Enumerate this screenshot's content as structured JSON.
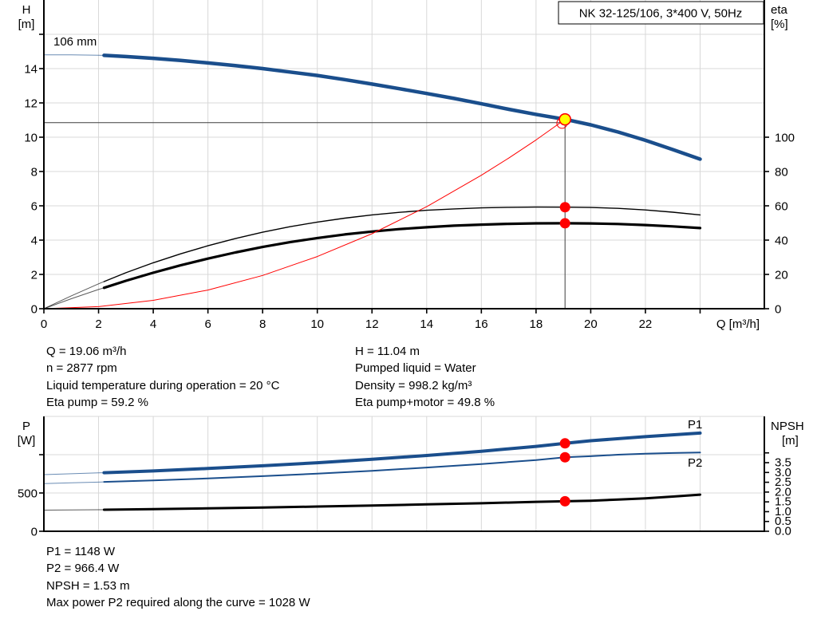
{
  "title_box": "NK 32-125/106, 3*400 V, 50Hz",
  "colors": {
    "blue": "#1a4e8c",
    "label_blue": "#2060a5",
    "black": "#000000",
    "red": "#ff0000",
    "yellow": "#ffff00",
    "grid": "#d8d8d8",
    "crosshair": "#3f3f3f"
  },
  "info": {
    "top_left": [
      "Q = 19.06 m³/h",
      "n = 2877 rpm",
      "Liquid temperature during operation = 20 °C",
      "Eta pump = 59.2 %"
    ],
    "top_right": [
      "H = 11.04 m",
      "Pumped liquid = Water",
      "Density = 998.2 kg/m³",
      "Eta pump+motor = 49.8 %"
    ],
    "bottom": [
      "P1 = 1148 W",
      "P2 = 966.4 W",
      "NPSH = 1.53 m",
      "Max power P2 required along the curve = 1028 W"
    ]
  },
  "chart_data": [
    {
      "type": "line",
      "title": "NK 32-125/106, 3*400 V, 50Hz",
      "impeller_label": "106 mm",
      "x_axis": {
        "label": "Q [m³/h]",
        "range": [
          0,
          26.35
        ],
        "ticks": [
          [
            0,
            "0"
          ],
          [
            2,
            "2"
          ],
          [
            4,
            "4"
          ],
          [
            6,
            "6"
          ],
          [
            8,
            "8"
          ],
          [
            10,
            "10"
          ],
          [
            12,
            "12"
          ],
          [
            14,
            "14"
          ],
          [
            16,
            "16"
          ],
          [
            18,
            "18"
          ],
          [
            20,
            "20"
          ],
          [
            22,
            "22"
          ],
          [
            24,
            ""
          ]
        ]
      },
      "y_left": {
        "label_line1": "H",
        "label_line2": "[m]",
        "range": [
          0,
          18
        ],
        "ticks": [
          [
            0,
            "0"
          ],
          [
            2,
            "2"
          ],
          [
            4,
            "4"
          ],
          [
            6,
            "6"
          ],
          [
            8,
            "8"
          ],
          [
            10,
            "10"
          ],
          [
            12,
            "12"
          ],
          [
            14,
            "14"
          ],
          [
            16,
            ""
          ]
        ]
      },
      "y_right": {
        "label_line1": "eta",
        "label_line2": "[%]",
        "range": [
          0,
          180
        ],
        "ticks": [
          [
            0,
            "0"
          ],
          [
            20,
            "20"
          ],
          [
            40,
            "40"
          ],
          [
            60,
            "60"
          ],
          [
            80,
            "80"
          ],
          [
            100,
            "100"
          ]
        ]
      },
      "grid": {
        "x": [
          2,
          4,
          6,
          8,
          10,
          12,
          14,
          16,
          18,
          20,
          22,
          24
        ],
        "y_left": [
          2,
          4,
          6,
          8,
          10,
          12,
          14,
          16
        ]
      },
      "duty_point": {
        "q": 19.06,
        "h": 11.04
      },
      "crosshair": {
        "q": 19.06,
        "h": 10.85
      },
      "series": [
        {
          "name": "head-curve",
          "color": "blue",
          "width": 4.5,
          "scale": "H",
          "thin_until": 2.2,
          "points": [
            [
              0,
              14.8
            ],
            [
              1,
              14.8
            ],
            [
              2,
              14.78
            ],
            [
              2.2,
              14.77
            ],
            [
              3,
              14.7
            ],
            [
              4,
              14.6
            ],
            [
              5,
              14.48
            ],
            [
              6,
              14.33
            ],
            [
              7,
              14.17
            ],
            [
              8,
              14.0
            ],
            [
              9,
              13.8
            ],
            [
              10,
              13.6
            ],
            [
              11,
              13.36
            ],
            [
              12,
              13.1
            ],
            [
              13,
              12.83
            ],
            [
              14,
              12.55
            ],
            [
              15,
              12.26
            ],
            [
              16,
              11.95
            ],
            [
              17,
              11.63
            ],
            [
              18,
              11.33
            ],
            [
              19.06,
              11.04
            ],
            [
              20,
              10.72
            ],
            [
              21,
              10.3
            ],
            [
              22,
              9.82
            ],
            [
              23,
              9.28
            ],
            [
              24,
              8.72
            ]
          ]
        },
        {
          "name": "eta-pump-curve",
          "color": "black",
          "width": 1.4,
          "scale": "ETA",
          "thin_until": 2.2,
          "points": [
            [
              0,
              0
            ],
            [
              1,
              7.5
            ],
            [
              2,
              14.5
            ],
            [
              2.2,
              15.8
            ],
            [
              3,
              21
            ],
            [
              4,
              26.8
            ],
            [
              5,
              32
            ],
            [
              6,
              36.7
            ],
            [
              7,
              40.9
            ],
            [
              8,
              44.6
            ],
            [
              9,
              47.8
            ],
            [
              10,
              50.5
            ],
            [
              11,
              52.8
            ],
            [
              12,
              54.7
            ],
            [
              13,
              56.2
            ],
            [
              14,
              57.4
            ],
            [
              15,
              58.2
            ],
            [
              16,
              58.8
            ],
            [
              17,
              59.1
            ],
            [
              18,
              59.25
            ],
            [
              19.06,
              59.2
            ],
            [
              20,
              59.0
            ],
            [
              21,
              58.5
            ],
            [
              22,
              57.6
            ],
            [
              23,
              56.3
            ],
            [
              24,
              54.7
            ]
          ]
        },
        {
          "name": "eta-pump-motor-curve",
          "color": "black",
          "width": 3.2,
          "scale": "ETA",
          "thin_until": 2.2,
          "points": [
            [
              0,
              0
            ],
            [
              1,
              5.8
            ],
            [
              2,
              11.2
            ],
            [
              2.2,
              12.2
            ],
            [
              3,
              16.3
            ],
            [
              4,
              21
            ],
            [
              5,
              25.3
            ],
            [
              6,
              29.2
            ],
            [
              7,
              32.8
            ],
            [
              8,
              36
            ],
            [
              9,
              38.8
            ],
            [
              10,
              41.2
            ],
            [
              11,
              43.3
            ],
            [
              12,
              45
            ],
            [
              13,
              46.4
            ],
            [
              14,
              47.5
            ],
            [
              15,
              48.4
            ],
            [
              16,
              49
            ],
            [
              17,
              49.5
            ],
            [
              18,
              49.75
            ],
            [
              19.06,
              49.8
            ],
            [
              20,
              49.7
            ],
            [
              21,
              49.4
            ],
            [
              22,
              48.8
            ],
            [
              23,
              48
            ],
            [
              24,
              47
            ]
          ]
        },
        {
          "name": "system-curve",
          "color": "red",
          "width": 1,
          "scale": "H",
          "points": [
            [
              0,
              0
            ],
            [
              2,
              0.12
            ],
            [
              4,
              0.49
            ],
            [
              6,
              1.09
            ],
            [
              8,
              1.94
            ],
            [
              10,
              3.04
            ],
            [
              12,
              4.37
            ],
            [
              14,
              5.95
            ],
            [
              16,
              7.78
            ],
            [
              17,
              8.78
            ],
            [
              18,
              9.84
            ],
            [
              19.06,
              11.04
            ]
          ]
        }
      ],
      "markers": [
        {
          "type": "open-circle",
          "q": 18.95,
          "scale": "H",
          "v": 10.82
        },
        {
          "type": "duty",
          "q": 19.06,
          "scale": "H",
          "v": 11.04
        },
        {
          "type": "dot",
          "q": 19.06,
          "scale": "ETA",
          "v": 59.2
        },
        {
          "type": "dot",
          "q": 19.06,
          "scale": "ETA",
          "v": 49.8
        }
      ]
    },
    {
      "type": "line",
      "x_axis": {
        "label": "",
        "range": [
          0,
          26.35
        ],
        "ticks": []
      },
      "y_left": {
        "label_line1": "P",
        "label_line2": "[W]",
        "range": [
          0,
          1500
        ],
        "ticks": [
          [
            0,
            "0"
          ],
          [
            500,
            "500"
          ],
          [
            1000,
            ""
          ]
        ]
      },
      "y_right": {
        "label_line1": "NPSH",
        "label_line2": "[m]",
        "range": [
          0,
          5.86
        ],
        "ticks": [
          [
            0,
            "0.0"
          ],
          [
            0.5,
            "0.5"
          ],
          [
            1,
            "1.0"
          ],
          [
            1.5,
            "1.5"
          ],
          [
            2,
            "2.0"
          ],
          [
            2.5,
            "2.5"
          ],
          [
            3,
            "3.0"
          ],
          [
            3.5,
            "3.5"
          ],
          [
            4,
            ""
          ]
        ]
      },
      "grid": {
        "x": [
          2,
          4,
          6,
          8,
          10,
          12,
          14,
          16,
          18,
          20,
          22,
          24
        ],
        "y_left": [
          500,
          1000,
          1500
        ]
      },
      "curve_labels": [
        {
          "text": "P1"
        },
        {
          "text": "P2"
        }
      ],
      "series": [
        {
          "name": "p1-curve",
          "color": "blue",
          "width": 4,
          "scale": "P",
          "thin_until": 2.2,
          "points": [
            [
              0,
              740
            ],
            [
              1,
              751
            ],
            [
              2,
              762
            ],
            [
              2.2,
              765
            ],
            [
              4,
              788
            ],
            [
              6,
              820
            ],
            [
              8,
              855
            ],
            [
              10,
              895
            ],
            [
              12,
              940
            ],
            [
              14,
              990
            ],
            [
              16,
              1045
            ],
            [
              18,
              1108
            ],
            [
              19.06,
              1148
            ],
            [
              20,
              1182
            ],
            [
              22,
              1235
            ],
            [
              24,
              1282
            ]
          ]
        },
        {
          "name": "p2-curve",
          "color": "blue",
          "width": 2,
          "scale": "P",
          "thin_until": 2.2,
          "points": [
            [
              0,
              622
            ],
            [
              1,
              632
            ],
            [
              2,
              642
            ],
            [
              2.2,
              645
            ],
            [
              4,
              664
            ],
            [
              6,
              690
            ],
            [
              8,
              720
            ],
            [
              10,
              752
            ],
            [
              12,
              790
            ],
            [
              14,
              832
            ],
            [
              16,
              878
            ],
            [
              18,
              930
            ],
            [
              19.06,
              966.4
            ],
            [
              20,
              980
            ],
            [
              21,
              1000
            ],
            [
              22,
              1013
            ],
            [
              23,
              1022
            ],
            [
              24,
              1028
            ]
          ]
        },
        {
          "name": "npsh-curve",
          "color": "black",
          "width": 3,
          "scale": "NPSH",
          "thin_until": 2.2,
          "points": [
            [
              0,
              1.08
            ],
            [
              2,
              1.1
            ],
            [
              2.2,
              1.1
            ],
            [
              4,
              1.13
            ],
            [
              6,
              1.17
            ],
            [
              8,
              1.21
            ],
            [
              10,
              1.26
            ],
            [
              12,
              1.31
            ],
            [
              14,
              1.37
            ],
            [
              16,
              1.43
            ],
            [
              18,
              1.5
            ],
            [
              19.06,
              1.53
            ],
            [
              20,
              1.56
            ],
            [
              21,
              1.62
            ],
            [
              22,
              1.68
            ],
            [
              23,
              1.77
            ],
            [
              24,
              1.87
            ]
          ]
        }
      ],
      "markers": [
        {
          "type": "dot",
          "q": 19.06,
          "scale": "P",
          "v": 1148
        },
        {
          "type": "dot",
          "q": 19.06,
          "scale": "P",
          "v": 966.4
        },
        {
          "type": "dot",
          "q": 19.06,
          "scale": "NPSH",
          "v": 1.53
        }
      ]
    }
  ]
}
